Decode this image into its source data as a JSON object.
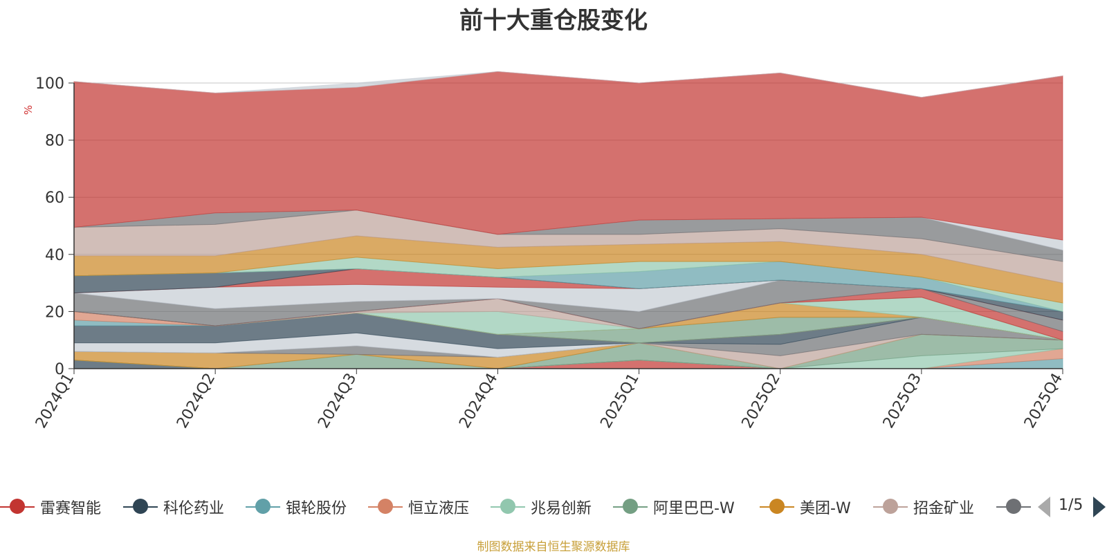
{
  "chart_data": {
    "type": "area",
    "title": "前十大重仓股变化",
    "ylabel": "%",
    "xlabel": "",
    "ylim": [
      0,
      100
    ],
    "yticks": [
      0,
      20,
      40,
      60,
      80,
      100
    ],
    "grid": true,
    "legend_position": "bottom",
    "categories": [
      "2024Q1",
      "2024Q2",
      "2024Q3",
      "2024Q4",
      "2025Q1",
      "2025Q2",
      "2025Q3",
      "2025Q4"
    ],
    "series": [
      {
        "name": "雷赛智能",
        "color": "#c23531",
        "values": [
          0,
          0,
          0,
          0,
          3,
          0,
          0,
          0
        ]
      },
      {
        "name": "科伦药业",
        "color": "#2f4554",
        "values": [
          3,
          0,
          0,
          0,
          0,
          0,
          0,
          0
        ]
      },
      {
        "name": "银轮股份",
        "color": "#61a0a8",
        "values": [
          0,
          0,
          0,
          0,
          0,
          0,
          0,
          3.5
        ]
      },
      {
        "name": "恒立液压",
        "color": "#d48265",
        "values": [
          0,
          0,
          0,
          0,
          0,
          0,
          0,
          3.5
        ]
      },
      {
        "name": "兆易创新",
        "color": "#91c7ae",
        "values": [
          0,
          0,
          0,
          0,
          0,
          0,
          4.5,
          0
        ]
      },
      {
        "name": "阿里巴巴-W",
        "color": "#749f83",
        "values": [
          0,
          0,
          5,
          0,
          6,
          0,
          7.5,
          3
        ]
      },
      {
        "name": "美团-W",
        "color": "#ca8622",
        "values": [
          3,
          5.5,
          0,
          4,
          0,
          0,
          0,
          0
        ]
      },
      {
        "name": "招金矿业",
        "color": "#bda29a",
        "values": [
          0,
          0,
          0,
          0,
          0,
          4.5,
          0,
          0
        ]
      },
      {
        "name": "",
        "color": "#6e7074",
        "values": [
          0,
          0,
          3,
          0,
          0,
          4,
          6,
          0
        ]
      },
      {
        "name": "",
        "color": "#c4ccd3",
        "values": [
          3,
          3.5,
          4.5,
          3,
          0,
          0,
          0,
          0
        ]
      },
      {
        "name": "",
        "color": "#2f4554",
        "values": [
          6,
          6,
          7,
          5,
          0,
          3.5,
          0,
          0
        ]
      },
      {
        "name": "",
        "color": "#61a0a8",
        "values": [
          2,
          0,
          0,
          0,
          0,
          0,
          0,
          0
        ]
      },
      {
        "name": "",
        "color": "#d48265",
        "values": [
          3,
          0,
          0,
          0,
          0,
          0,
          0,
          0
        ]
      },
      {
        "name": "",
        "color": "#749f83",
        "values": [
          0,
          0,
          0,
          0,
          5,
          6,
          0,
          0
        ]
      },
      {
        "name": "",
        "color": "#ca8622",
        "values": [
          0,
          0,
          0,
          0,
          0,
          5,
          0,
          0
        ]
      },
      {
        "name": "",
        "color": "#91c7ae",
        "values": [
          0,
          0,
          0,
          8,
          0,
          0,
          7,
          0
        ]
      },
      {
        "name": "",
        "color": "#bda29a",
        "values": [
          0,
          0,
          0.5,
          4.5,
          0,
          0,
          0,
          0
        ]
      },
      {
        "name": "",
        "color": "#c23531",
        "values": [
          0,
          0,
          0,
          0,
          0,
          0,
          3,
          3
        ]
      },
      {
        "name": "",
        "color": "#6e7074",
        "values": [
          6.5,
          6,
          3.5,
          0,
          6,
          8,
          0,
          4
        ]
      },
      {
        "name": "",
        "color": "#c4ccd3",
        "values": [
          0,
          7.5,
          6,
          4,
          8,
          0,
          0,
          0
        ]
      },
      {
        "name": "",
        "color": "#c23531",
        "values": [
          0,
          0,
          5.5,
          3.5,
          0,
          0,
          0,
          0
        ]
      },
      {
        "name": "",
        "color": "#2f4554",
        "values": [
          6,
          5,
          0,
          0,
          0,
          0,
          0,
          3
        ]
      },
      {
        "name": "",
        "color": "#61a0a8",
        "values": [
          0,
          0,
          0,
          0,
          6,
          6.5,
          4,
          0
        ]
      },
      {
        "name": "",
        "color": "#91c7ae",
        "values": [
          0,
          0,
          4,
          3,
          3.5,
          0,
          0,
          3
        ]
      },
      {
        "name": "",
        "color": "#ca8622",
        "values": [
          7,
          6,
          7.5,
          7.5,
          6,
          7,
          8,
          7
        ]
      },
      {
        "name": "",
        "color": "#bda29a",
        "values": [
          10,
          11,
          9,
          4.5,
          3.5,
          4.5,
          5.5,
          7.5
        ]
      },
      {
        "name": "",
        "color": "#6e7074",
        "values": [
          0,
          4,
          0,
          0,
          5,
          3.5,
          7.5,
          4
        ]
      },
      {
        "name": "",
        "color": "#c4ccd3",
        "values": [
          0,
          0,
          0,
          0,
          0,
          0,
          0,
          3.5
        ]
      },
      {
        "name": "",
        "color": "#c23531",
        "values": [
          51,
          42,
          43,
          57,
          48,
          51,
          42,
          57.5
        ]
      },
      {
        "name": "",
        "color": "#c4ccd3",
        "values": [
          0,
          0,
          1.5,
          0,
          0,
          0,
          0,
          0
        ]
      }
    ]
  },
  "legend": {
    "items": [
      "雷赛智能",
      "科伦药业",
      "银轮股份",
      "恒立液压",
      "兆易创新",
      "阿里巴巴-W",
      "美团-W",
      "招金矿业",
      ""
    ],
    "colors": [
      "#c23531",
      "#2f4554",
      "#61a0a8",
      "#d48265",
      "#91c7ae",
      "#749f83",
      "#ca8622",
      "#bda29a",
      "#6e7074"
    ],
    "page_indicator": "1/5"
  },
  "source_note": "制图数据来自恒生聚源数据库"
}
